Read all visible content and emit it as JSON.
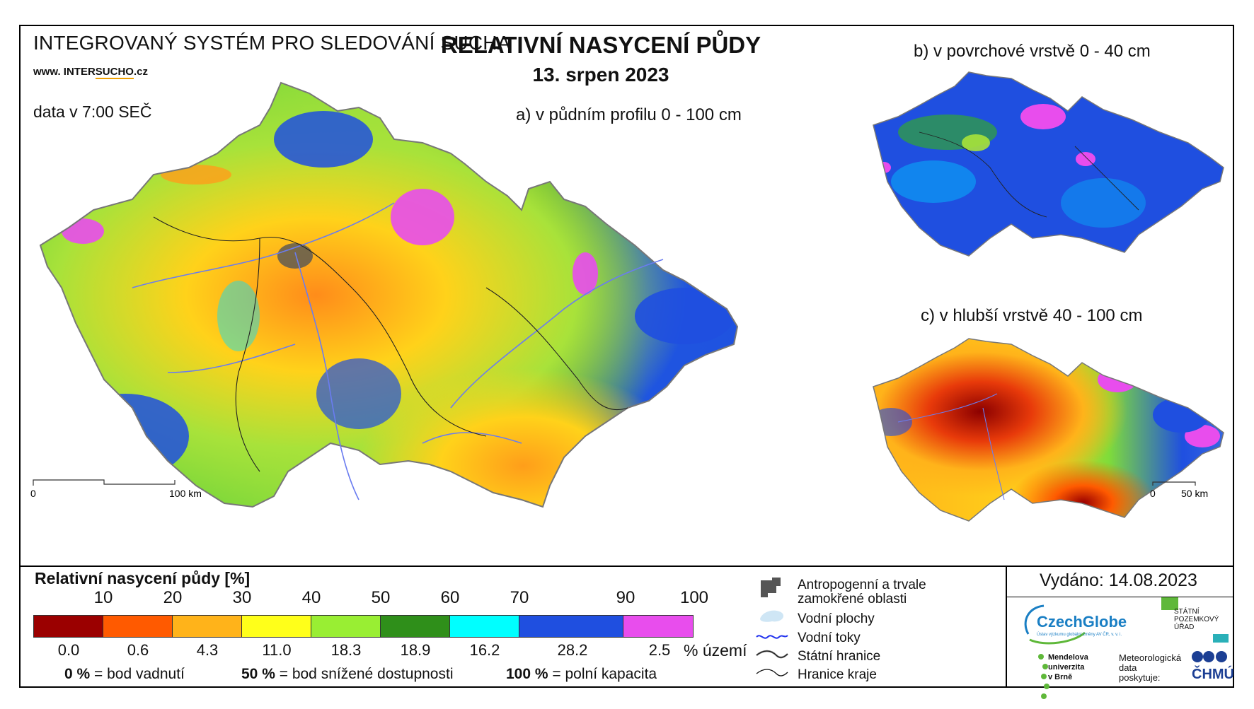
{
  "header": {
    "system_title": "INTEGROVANÝ SYSTÉM PRO SLEDOVÁNÍ SUCHA",
    "website_prefix": "www. INTER",
    "website_accent": "SUCHO",
    "website_suffix": ".cz",
    "data_time": "data v 7:00 SEČ",
    "main_title": "RELATIVNÍ NASYCENÍ PŮDY",
    "date": "13. srpen 2023"
  },
  "maps": {
    "a_label": "a) v půdním profilu 0 - 100 cm",
    "b_label": "b) v povrchové vrstvě 0 - 40 cm",
    "c_label": "c) v hlubší vrstvě 40 - 100 cm",
    "scale_main": {
      "start": "0",
      "end": "100 km"
    },
    "scale_small": {
      "start": "0",
      "end": "50 km"
    },
    "dominant_colors": {
      "a": [
        "#a8e23a",
        "#ffff33",
        "#ffb31a",
        "#3a8f1f",
        "#1f4fe0",
        "#00ffff",
        "#e84ded"
      ],
      "b": [
        "#1f4fe0",
        "#00ffff",
        "#3a8f1f",
        "#e84ded",
        "#a8e23a"
      ],
      "c": [
        "#ff6a1a",
        "#9b0000",
        "#ffb31a",
        "#ffff33",
        "#a8e23a",
        "#1f4fe0",
        "#e84ded"
      ]
    }
  },
  "legend": {
    "title": "Relativní nasycení půdy [%]",
    "thresholds": [
      "10",
      "20",
      "30",
      "40",
      "50",
      "60",
      "70",
      "90",
      "100"
    ],
    "colors": [
      "#9b0000",
      "#ff5a00",
      "#ffb31a",
      "#ffff1a",
      "#99ee33",
      "#2f8f1a",
      "#00ffff",
      "#1f4fe0",
      "#e84ded"
    ],
    "area_percent": [
      "0.0",
      "0.6",
      "4.3",
      "11.0",
      "18.3",
      "18.9",
      "16.2",
      "28.2",
      "2.5"
    ],
    "area_unit": "% území",
    "definitions": [
      {
        "value": "0 %",
        "text": "= bod vadnutí"
      },
      {
        "value": "50 %",
        "text": "= bod snížené dostupnosti"
      },
      {
        "value": "100 %",
        "text": "= polní kapacita"
      }
    ]
  },
  "map_legend": {
    "items": [
      {
        "icon": "anthropogenic-area-icon",
        "label_line1": "Antropogenní a trvale",
        "label_line2": "zamokřené oblasti"
      },
      {
        "icon": "water-body-icon",
        "label_line1": "Vodní plochy"
      },
      {
        "icon": "river-icon",
        "label_line1": "Vodní toky"
      },
      {
        "icon": "state-border-icon",
        "label_line1": "Státní hranice"
      },
      {
        "icon": "region-border-icon",
        "label_line1": "Hranice kraje"
      }
    ]
  },
  "footer": {
    "issued": "Vydáno: 14.08.2023",
    "czechglobe": "CzechGlobe",
    "czechglobe_sub": "Ústav výzkumu globální změny AV ČR, v. v. i.",
    "spu_line1": "STÁTNÍ",
    "spu_line2": "POZEMKOVÝ",
    "spu_line3": "ÚŘAD",
    "mendel_line1": "Mendelova",
    "mendel_line2": "univerzita",
    "mendel_line3": "v Brně",
    "meteo_line1": "Meteorologická",
    "meteo_line2": "data",
    "meteo_line3": "poskytuje:",
    "chmu": "ČHMÚ"
  }
}
